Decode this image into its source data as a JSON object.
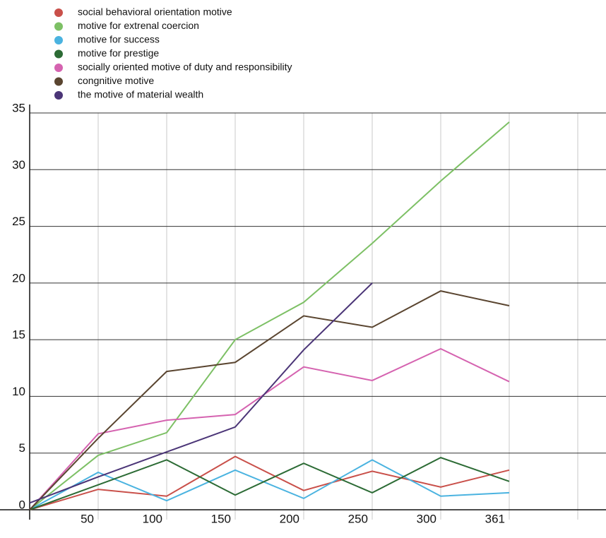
{
  "chart_data": {
    "type": "line",
    "categories": [
      null,
      "50",
      "100",
      "150",
      "200",
      "250",
      "300",
      "361"
    ],
    "series": [
      {
        "name": "social behavioral orientation motive",
        "color": "#c9504a",
        "values": [
          0,
          1.8,
          1.2,
          4.7,
          1.7,
          3.4,
          2.0,
          3.5
        ]
      },
      {
        "name": "motive for extrenal coercion",
        "color": "#7dc065",
        "values": [
          0,
          4.8,
          6.8,
          15,
          18.3,
          23.5,
          29,
          34.2
        ]
      },
      {
        "name": "motive for success",
        "color": "#4ab3e0",
        "values": [
          0,
          3.3,
          0.8,
          3.5,
          1.0,
          4.4,
          1.2,
          1.5
        ]
      },
      {
        "name": "motive for prestige",
        "color": "#2c6b35",
        "values": [
          0,
          2.2,
          4.4,
          1.3,
          4.1,
          1.5,
          4.6,
          2.5
        ]
      },
      {
        "name": "socially oriented motive of duty and responsibility",
        "color": "#d563b0",
        "values": [
          0,
          6.7,
          7.9,
          8.4,
          12.6,
          11.4,
          14.2,
          11.3
        ]
      },
      {
        "name": "congnitive motive",
        "color": "#5a4530",
        "values": [
          0,
          6.3,
          12.2,
          13,
          17.1,
          16.1,
          19.3,
          18
        ]
      },
      {
        "name": "the motive of material wealth",
        "color": "#4b3577",
        "values": [
          0.6,
          2.9,
          5.1,
          7.3,
          14.1,
          20,
          null,
          null
        ]
      }
    ],
    "ylim": [
      0,
      35
    ],
    "yticks": [
      0,
      5,
      10,
      15,
      20,
      25,
      30,
      35
    ],
    "grid": true
  }
}
